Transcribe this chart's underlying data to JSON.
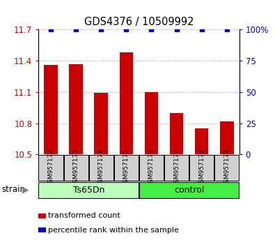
{
  "title": "GDS4376 / 10509992",
  "samples": [
    "GSM957172",
    "GSM957173",
    "GSM957174",
    "GSM957175",
    "GSM957176",
    "GSM957177",
    "GSM957178",
    "GSM957179"
  ],
  "bar_values": [
    11.36,
    11.37,
    11.09,
    11.48,
    11.1,
    10.9,
    10.75,
    10.82
  ],
  "percentile_values": [
    100,
    100,
    100,
    100,
    100,
    100,
    100,
    100
  ],
  "ymin": 10.5,
  "ymax": 11.7,
  "yticks": [
    10.5,
    10.8,
    11.1,
    11.4,
    11.7
  ],
  "y2ticks": [
    0,
    25,
    50,
    75,
    100
  ],
  "bar_color": "#cc0000",
  "percentile_color": "#0000cc",
  "groups": [
    {
      "label": "Ts65Dn",
      "start": 0,
      "end": 4,
      "color": "#bbffbb"
    },
    {
      "label": "control",
      "start": 4,
      "end": 8,
      "color": "#44ee44"
    }
  ],
  "strain_label": "strain",
  "legend_items": [
    {
      "color": "#cc0000",
      "label": "transformed count"
    },
    {
      "color": "#0000cc",
      "label": "percentile rank within the sample"
    }
  ],
  "grid_color": "#888888",
  "plot_bg": "#ffffff",
  "label_bg": "#d0d0d0"
}
